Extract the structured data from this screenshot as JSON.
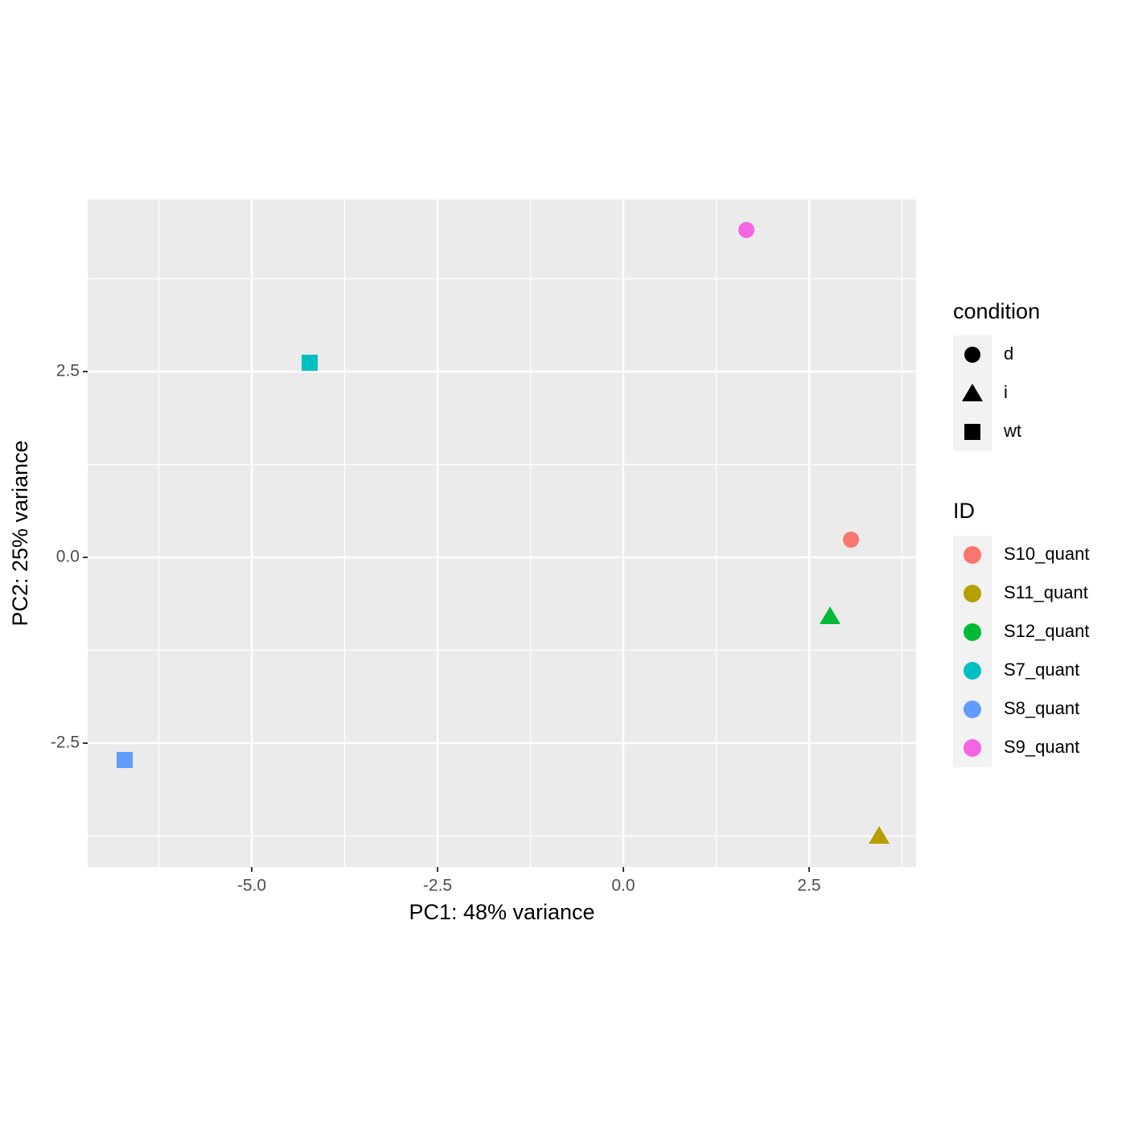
{
  "chart_data": {
    "type": "scatter",
    "x_label": "PC1: 48% variance",
    "y_label": "PC2: 25% variance",
    "xlim": [
      -7.208,
      3.939
    ],
    "ylim": [
      -4.167,
      4.816
    ],
    "xticks": [
      {
        "value": -5,
        "label": "-5.0"
      },
      -2.5,
      {
        "value": 0,
        "label": "0.0"
      },
      2.5
    ],
    "yticks": [
      -2.5,
      {
        "value": 0,
        "label": "0.0"
      },
      2.5
    ],
    "xminorticks": [
      -6.25,
      -3.75,
      -1.25,
      1.25,
      3.75
    ],
    "yminorticks": [
      -3.75,
      -1.25,
      1.25,
      3.75
    ],
    "grid": true,
    "shape_legend": {
      "title": "condition",
      "entries": [
        "d",
        "i",
        "wt"
      ],
      "shapes": [
        "circle",
        "triangle",
        "square"
      ]
    },
    "color_legend_title": "ID",
    "series": [
      {
        "name": "S10_quant",
        "color": "#F8766D",
        "condition": "d",
        "x": [
          3.063
        ],
        "values": [
          0.238
        ]
      },
      {
        "name": "S11_quant",
        "color": "#B79F00",
        "condition": "i",
        "x": [
          3.442
        ],
        "values": [
          -3.745
        ]
      },
      {
        "name": "S12_quant",
        "color": "#00BA38",
        "condition": "i",
        "x": [
          2.781
        ],
        "values": [
          -0.79
        ]
      },
      {
        "name": "S7_quant",
        "color": "#00BFC4",
        "condition": "wt",
        "x": [
          -4.221
        ],
        "values": [
          2.619
        ]
      },
      {
        "name": "S8_quant",
        "color": "#619CFF",
        "condition": "wt",
        "x": [
          -6.71
        ],
        "values": [
          -2.727
        ]
      },
      {
        "name": "S9_quant",
        "color": "#F564E3",
        "condition": "d",
        "x": [
          1.656
        ],
        "values": [
          4.405
        ]
      }
    ]
  }
}
